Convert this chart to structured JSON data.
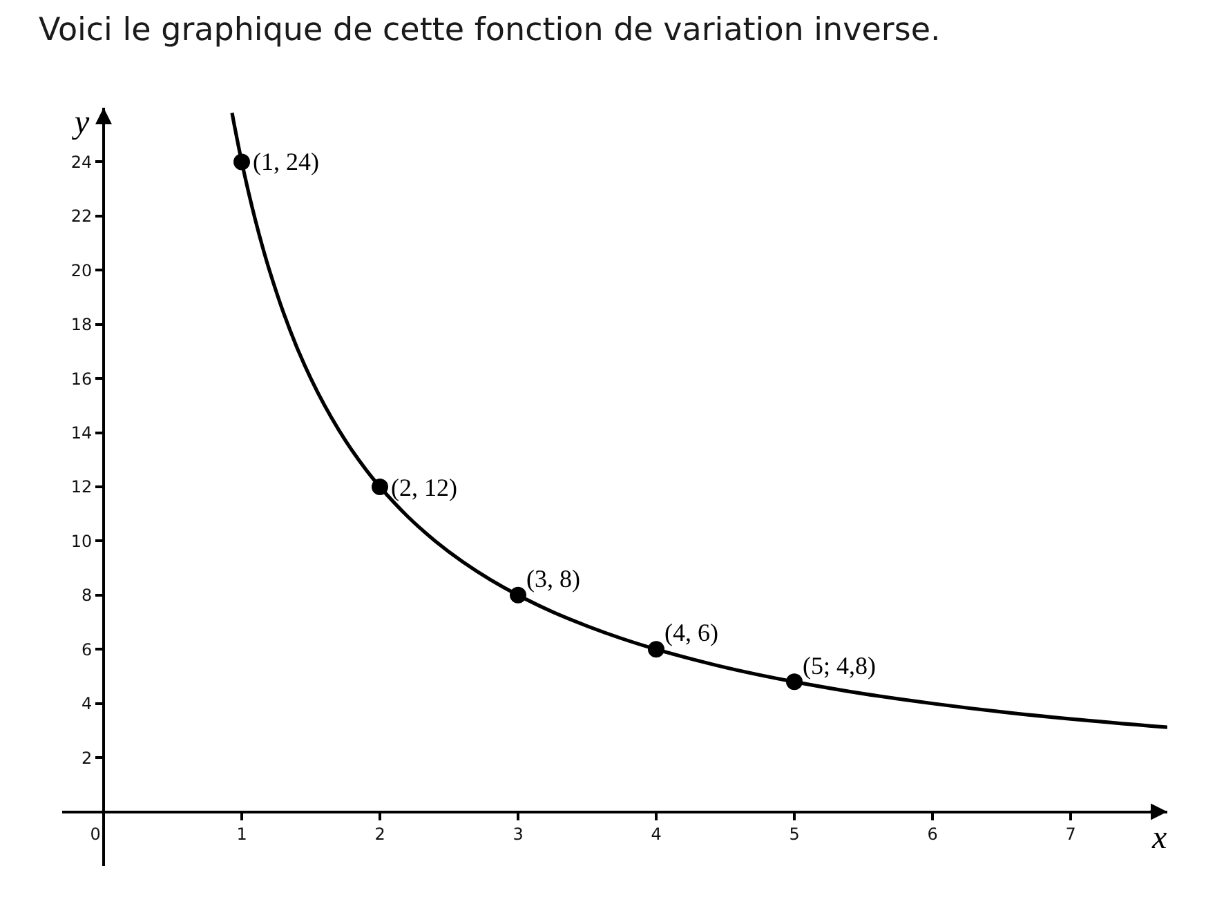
{
  "chart_data": {
    "type": "line",
    "title": "Voici le graphique de cette fonction de variation inverse.",
    "xlabel": "x",
    "ylabel": "y",
    "series": [
      {
        "color": "#000000",
        "marker": "none",
        "line_style": "solid",
        "x": [
          0.93,
          0.95,
          1,
          1.05,
          1.1,
          1.15,
          1.2,
          1.3,
          1.4,
          1.5,
          1.6,
          1.7,
          1.8,
          1.9,
          2,
          2.2,
          2.4,
          2.6,
          2.8,
          3,
          3.25,
          3.5,
          3.75,
          4,
          4.25,
          4.5,
          4.75,
          5,
          5.5,
          6,
          6.5,
          7,
          7.7
        ],
        "values": [
          25.81,
          25.26,
          24,
          22.86,
          21.82,
          20.87,
          20,
          18.46,
          17.14,
          16,
          15,
          14.12,
          13.33,
          12.63,
          12,
          10.91,
          10,
          9.23,
          8.57,
          8,
          7.38,
          6.86,
          6.4,
          6,
          5.65,
          5.33,
          5.05,
          4.8,
          4.36,
          4,
          3.69,
          3.43,
          3.12
        ]
      },
      {
        "type": "scatter",
        "color": "#000000",
        "marker": "circle",
        "x": [
          1,
          2,
          3,
          4,
          5
        ],
        "values": [
          24,
          12,
          8,
          6,
          4.8
        ]
      }
    ],
    "xlim": [
      -0.3,
      7.7
    ],
    "ylim": [
      -2,
      26
    ],
    "xticks": [
      0,
      1,
      2,
      3,
      4,
      5,
      6,
      7
    ],
    "yticks": [
      2,
      4,
      6,
      8,
      10,
      12,
      14,
      16,
      18,
      20,
      22,
      24
    ],
    "annotations": [
      {
        "text": "(1, 24)",
        "x": 1,
        "y": 24
      },
      {
        "text": "(2, 12)",
        "x": 2,
        "y": 12
      },
      {
        "text": "(3, 8)",
        "x": 3,
        "y": 8
      },
      {
        "text": "(4, 6)",
        "x": 4,
        "y": 6
      },
      {
        "text": "(5; 4,8)",
        "x": 5,
        "y": 4.8
      }
    ]
  }
}
